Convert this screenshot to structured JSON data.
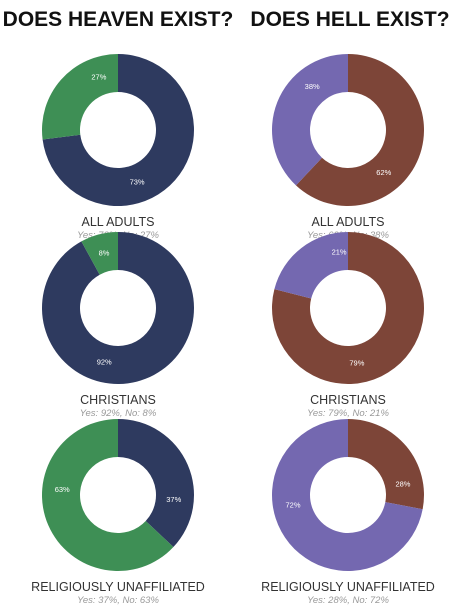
{
  "headings": [
    "DOES HEAVEN EXIST?",
    "DOES HELL EXIST?"
  ],
  "chart_data": [
    {
      "type": "donut",
      "title": "ALL ADULTS",
      "subtitle": "Yes: 73%, No: 27%",
      "values": [
        73,
        27
      ],
      "value_labels": [
        "73%",
        "27%"
      ],
      "colors": [
        "#2e3a5f",
        "#3e8f55"
      ]
    },
    {
      "type": "donut",
      "title": "ALL ADULTS",
      "subtitle": "Yes: 62%, No: 38%",
      "values": [
        62,
        38
      ],
      "value_labels": [
        "62%",
        "38%"
      ],
      "colors": [
        "#7d4538",
        "#7468b0"
      ]
    },
    {
      "type": "donut",
      "title": "CHRISTIANS",
      "subtitle": "Yes: 92%, No: 8%",
      "values": [
        92,
        8
      ],
      "value_labels": [
        "92%",
        "8%"
      ],
      "colors": [
        "#2e3a5f",
        "#3e8f55"
      ]
    },
    {
      "type": "donut",
      "title": "CHRISTIANS",
      "subtitle": "Yes: 79%, No: 21%",
      "values": [
        79,
        21
      ],
      "value_labels": [
        "79%",
        "21%"
      ],
      "colors": [
        "#7d4538",
        "#7468b0"
      ]
    },
    {
      "type": "donut",
      "title": "RELIGIOUSLY UNAFFILIATED",
      "subtitle": "Yes: 37%, No: 63%",
      "values": [
        37,
        63
      ],
      "value_labels": [
        "37%",
        "63%"
      ],
      "colors": [
        "#2e3a5f",
        "#3e8f55"
      ]
    },
    {
      "type": "donut",
      "title": "RELIGIOUSLY UNAFFILIATED",
      "subtitle": "Yes: 28%, No: 72%",
      "values": [
        28,
        72
      ],
      "value_labels": [
        "28%",
        "72%"
      ],
      "colors": [
        "#7d4538",
        "#7468b0"
      ]
    }
  ]
}
